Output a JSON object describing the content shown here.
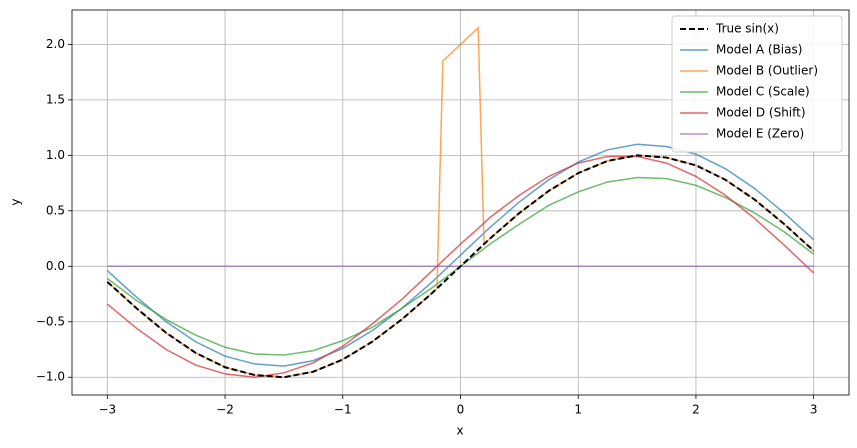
{
  "chart_data": {
    "type": "line",
    "xlabel": "x",
    "ylabel": "y",
    "x": [
      -3,
      -2.75,
      -2.5,
      -2.25,
      -2,
      -1.75,
      -1.5,
      -1.25,
      -1,
      -0.75,
      -0.5,
      -0.25,
      -0.2,
      -0.15,
      0,
      0.15,
      0.2,
      0.25,
      0.5,
      0.75,
      1,
      1.25,
      1.5,
      1.75,
      2,
      2.25,
      2.5,
      2.75,
      3
    ],
    "series": [
      {
        "name": "True sin(x)",
        "color": "#000000",
        "dashed": true,
        "values": [
          -0.14,
          -0.38,
          -0.6,
          -0.78,
          -0.91,
          -0.98,
          -1.0,
          -0.95,
          -0.84,
          -0.68,
          -0.48,
          -0.25,
          -0.2,
          -0.15,
          0,
          0.15,
          0.2,
          0.25,
          0.48,
          0.68,
          0.84,
          0.95,
          1.0,
          0.98,
          0.91,
          0.78,
          0.6,
          0.38,
          0.14
        ]
      },
      {
        "name": "Model A (Bias)",
        "color": "#1f77b4",
        "values": [
          -0.04,
          -0.28,
          -0.5,
          -0.68,
          -0.81,
          -0.88,
          -0.9,
          -0.85,
          -0.74,
          -0.58,
          -0.38,
          -0.15,
          -0.1,
          -0.05,
          0.1,
          0.25,
          0.3,
          0.35,
          0.58,
          0.78,
          0.94,
          1.05,
          1.1,
          1.08,
          1.01,
          0.88,
          0.7,
          0.48,
          0.24
        ]
      },
      {
        "name": "Model B (Outlier)",
        "color": "#ff7f0e",
        "values": [
          -0.14,
          -0.38,
          -0.6,
          -0.78,
          -0.91,
          -0.98,
          -1.0,
          -0.95,
          -0.84,
          -0.68,
          -0.48,
          -0.25,
          -0.2,
          1.85,
          2.0,
          2.15,
          0.2,
          0.25,
          0.48,
          0.68,
          0.84,
          0.95,
          1.0,
          0.98,
          0.91,
          0.78,
          0.6,
          0.38,
          0.14
        ]
      },
      {
        "name": "Model C (Scale)",
        "color": "#2ca02c",
        "values": [
          -0.11,
          -0.31,
          -0.48,
          -0.62,
          -0.73,
          -0.79,
          -0.8,
          -0.76,
          -0.67,
          -0.55,
          -0.38,
          -0.2,
          -0.16,
          -0.12,
          0,
          0.12,
          0.16,
          0.2,
          0.38,
          0.55,
          0.67,
          0.76,
          0.8,
          0.79,
          0.73,
          0.62,
          0.48,
          0.31,
          0.11
        ]
      },
      {
        "name": "Model D (Shift)",
        "color": "#d62728",
        "values": [
          -0.34,
          -0.56,
          -0.75,
          -0.89,
          -0.97,
          -1.0,
          -0.96,
          -0.87,
          -0.72,
          -0.52,
          -0.3,
          -0.05,
          0,
          0.05,
          0.2,
          0.34,
          0.39,
          0.44,
          0.64,
          0.81,
          0.93,
          0.99,
          0.99,
          0.93,
          0.81,
          0.64,
          0.43,
          0.19,
          -0.06
        ]
      },
      {
        "name": "Model E (Zero)",
        "color": "#9467bd",
        "values": [
          0,
          0,
          0,
          0,
          0,
          0,
          0,
          0,
          0,
          0,
          0,
          0,
          0,
          0,
          0,
          0,
          0,
          0,
          0,
          0,
          0,
          0,
          0,
          0,
          0,
          0,
          0,
          0,
          0
        ]
      }
    ],
    "xlim": [
      -3.3,
      3.3
    ],
    "xticks": [
      {
        "value": -3,
        "label": "−3"
      },
      {
        "value": -2,
        "label": "−2"
      },
      {
        "value": -1,
        "label": "−1"
      },
      0,
      1,
      2,
      3
    ],
    "ylim": [
      -1.16,
      2.31
    ],
    "yticks": [
      {
        "value": -1,
        "label": "−1.0"
      },
      {
        "value": -0.5,
        "label": "−0.5"
      },
      {
        "value": 0,
        "label": "0.0"
      },
      {
        "value": 0.5,
        "label": "0.5"
      },
      {
        "value": 1,
        "label": "1.0"
      },
      {
        "value": 1.5,
        "label": "1.5"
      },
      {
        "value": 2,
        "label": "2.0"
      }
    ],
    "grid": true,
    "legend": "upper right"
  }
}
